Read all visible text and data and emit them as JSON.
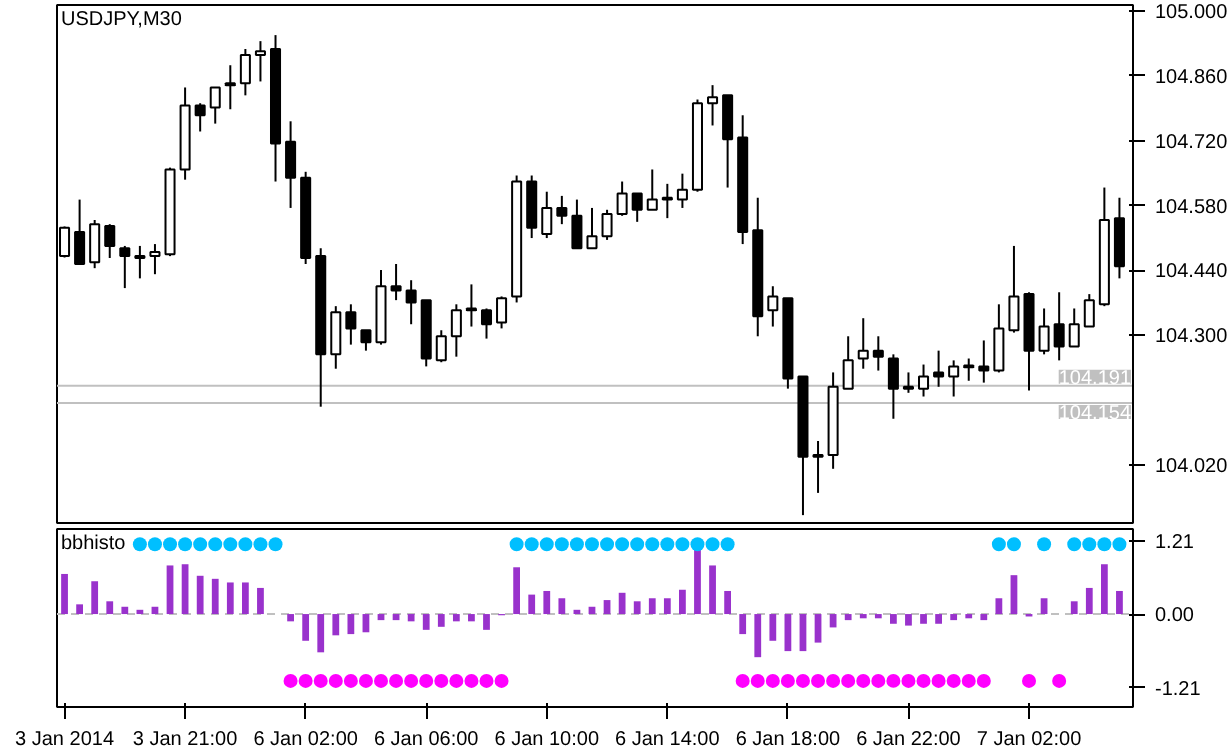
{
  "chart_data": [
    {
      "type": "candlestick",
      "title": "USDJPY,M30",
      "categories": [
        null,
        null,
        null,
        null,
        null,
        null,
        null,
        null,
        null,
        null,
        null,
        null,
        null,
        null,
        null,
        null,
        null,
        null,
        null,
        null,
        null,
        null,
        null,
        null,
        null,
        null,
        null,
        null,
        null,
        null,
        null,
        null,
        null,
        null,
        null,
        null,
        null,
        null,
        null,
        null,
        null,
        null,
        null,
        null,
        null,
        null,
        null,
        null,
        null,
        null,
        null,
        null,
        null,
        null,
        null,
        null,
        null,
        null,
        null,
        null,
        null,
        null,
        null,
        null,
        null,
        null,
        null,
        null,
        null,
        null,
        null
      ],
      "ohlc": [
        [
          104.471,
          104.535,
          104.468,
          104.532
        ],
        [
          104.523,
          104.593,
          104.452,
          104.454
        ],
        [
          104.458,
          104.549,
          104.445,
          104.54
        ],
        [
          104.536,
          104.54,
          104.467,
          104.493
        ],
        [
          104.488,
          104.493,
          104.402,
          104.471
        ],
        [
          104.471,
          104.493,
          104.423,
          104.467
        ],
        [
          104.471,
          104.497,
          104.432,
          104.48
        ],
        [
          104.475,
          104.662,
          104.471,
          104.658
        ],
        [
          104.658,
          104.835,
          104.636,
          104.796
        ],
        [
          104.796,
          104.801,
          104.74,
          104.775
        ],
        [
          104.792,
          104.835,
          104.757,
          104.835
        ],
        [
          104.844,
          104.883,
          104.788,
          104.84
        ],
        [
          104.844,
          104.918,
          104.818,
          104.905
        ],
        [
          104.905,
          104.935,
          104.848,
          104.913
        ],
        [
          104.918,
          104.948,
          104.632,
          104.714
        ],
        [
          104.718,
          104.762,
          104.575,
          104.64
        ],
        [
          104.64,
          104.653,
          104.454,
          104.467
        ],
        [
          104.471,
          104.488,
          104.146,
          104.259
        ],
        [
          104.259,
          104.363,
          104.228,
          104.35
        ],
        [
          104.35,
          104.367,
          104.28,
          104.315
        ],
        [
          104.311,
          104.311,
          104.267,
          104.285
        ],
        [
          104.285,
          104.441,
          104.28,
          104.406
        ],
        [
          104.406,
          104.454,
          104.376,
          104.397
        ],
        [
          104.397,
          104.419,
          104.324,
          104.371
        ],
        [
          104.376,
          104.376,
          104.233,
          104.25
        ],
        [
          104.246,
          104.311,
          104.242,
          104.298
        ],
        [
          104.298,
          104.367,
          104.254,
          104.354
        ],
        [
          104.354,
          104.41,
          104.319,
          104.358
        ],
        [
          104.354,
          104.358,
          104.293,
          104.324
        ],
        [
          104.328,
          104.384,
          104.315,
          104.38
        ],
        [
          104.384,
          104.645,
          104.371,
          104.632
        ],
        [
          104.632,
          104.645,
          104.51,
          104.532
        ],
        [
          104.519,
          104.61,
          104.51,
          104.575
        ],
        [
          104.575,
          104.601,
          104.54,
          104.558
        ],
        [
          104.558,
          104.593,
          104.488,
          104.488
        ],
        [
          104.488,
          104.575,
          104.488,
          104.514
        ],
        [
          104.514,
          104.571,
          104.506,
          104.562
        ],
        [
          104.562,
          104.632,
          104.558,
          104.606
        ],
        [
          104.606,
          104.606,
          104.545,
          104.571
        ],
        [
          104.571,
          104.658,
          104.571,
          104.593
        ],
        [
          104.597,
          104.627,
          104.553,
          104.593
        ],
        [
          104.593,
          104.649,
          104.575,
          104.614
        ],
        [
          104.614,
          104.809,
          104.61,
          104.801
        ],
        [
          104.801,
          104.84,
          104.753,
          104.814
        ],
        [
          104.818,
          104.818,
          104.619,
          104.723
        ],
        [
          104.727,
          104.775,
          104.497,
          104.523
        ],
        [
          104.527,
          104.597,
          104.298,
          104.341
        ],
        [
          104.354,
          104.406,
          104.319,
          104.384
        ],
        [
          104.38,
          104.38,
          104.185,
          104.207
        ],
        [
          104.211,
          104.211,
          103.912,
          104.038
        ],
        [
          104.042,
          104.072,
          103.96,
          104.038
        ],
        [
          104.042,
          104.22,
          104.012,
          104.189
        ],
        [
          104.185,
          104.298,
          104.185,
          104.246
        ],
        [
          104.25,
          104.337,
          104.228,
          104.267
        ],
        [
          104.267,
          104.298,
          104.224,
          104.254
        ],
        [
          104.25,
          104.259,
          104.12,
          104.185
        ],
        [
          104.189,
          104.22,
          104.176,
          104.185
        ],
        [
          104.185,
          104.237,
          104.168,
          104.211
        ],
        [
          104.22,
          104.267,
          104.189,
          104.211
        ],
        [
          104.211,
          104.246,
          104.168,
          104.233
        ],
        [
          104.235,
          104.25,
          104.202,
          104.231
        ],
        [
          104.233,
          104.289,
          104.198,
          104.224
        ],
        [
          104.224,
          104.367,
          104.22,
          104.315
        ],
        [
          104.311,
          104.493,
          104.306,
          104.384
        ],
        [
          104.389,
          104.393,
          104.181,
          104.267
        ],
        [
          104.267,
          104.358,
          104.259,
          104.319
        ],
        [
          104.324,
          104.393,
          104.246,
          104.276
        ],
        [
          104.276,
          104.358,
          104.276,
          104.324
        ],
        [
          104.319,
          104.389,
          104.319,
          104.376
        ],
        [
          104.367,
          104.619,
          104.363,
          104.549
        ],
        [
          104.553,
          104.597,
          104.423,
          104.449
        ]
      ],
      "ylim": [
        103.895,
        105.013
      ],
      "yticks": [
        {
          "value": 104.02,
          "label": "104.020"
        },
        {
          "value": 104.3,
          "label": "104.300"
        },
        {
          "value": 104.44,
          "label": "104.440"
        },
        {
          "value": 104.58,
          "label": "104.580"
        },
        {
          "value": 104.72,
          "label": "104.720"
        },
        {
          "value": 104.86,
          "label": "104.860"
        },
        {
          "value": 105.0,
          "label": "105.000"
        }
      ],
      "tick_labels": "y",
      "ref_lines": [
        {
          "axis": "y",
          "value": 104.191,
          "label": "104.191",
          "color": "#c0c0c0"
        },
        {
          "axis": "y",
          "value": 104.154,
          "label": "104.154",
          "color": "#c0c0c0"
        }
      ]
    },
    {
      "type": "bar",
      "title": "bbhisto",
      "categories": [
        "3 Jan 2014",
        null,
        null,
        null,
        null,
        null,
        null,
        null,
        "3 Jan 21:00",
        null,
        null,
        null,
        null,
        null,
        null,
        null,
        "6 Jan 02:00",
        null,
        null,
        null,
        null,
        null,
        null,
        null,
        "6 Jan 06:00",
        null,
        null,
        null,
        null,
        null,
        null,
        null,
        "6 Jan 10:00",
        null,
        null,
        null,
        null,
        null,
        null,
        null,
        "6 Jan 14:00",
        null,
        null,
        null,
        null,
        null,
        null,
        null,
        "6 Jan 18:00",
        null,
        null,
        null,
        null,
        null,
        null,
        null,
        "6 Jan 22:00",
        null,
        null,
        null,
        null,
        null,
        null,
        null,
        "7 Jan 02:00",
        null,
        null,
        null,
        null,
        null,
        null
      ],
      "series": [
        {
          "type": "bar",
          "color": "#9932cc",
          "values": [
            0.66,
            0.16,
            0.54,
            0.21,
            0.12,
            0.07,
            0.12,
            0.8,
            0.82,
            0.63,
            0.58,
            0.52,
            0.52,
            0.43,
            0,
            -0.12,
            -0.44,
            -0.63,
            -0.35,
            -0.33,
            -0.3,
            -0.1,
            -0.1,
            -0.12,
            -0.26,
            -0.21,
            -0.12,
            -0.12,
            -0.26,
            -0.02,
            0.77,
            0.32,
            0.38,
            0.26,
            0.07,
            0.12,
            0.23,
            0.35,
            0.21,
            0.26,
            0.26,
            0.4,
            1.08,
            0.8,
            0.38,
            -0.33,
            -0.71,
            -0.44,
            -0.61,
            -0.61,
            -0.47,
            -0.22,
            -0.1,
            -0.07,
            -0.07,
            -0.16,
            -0.19,
            -0.16,
            -0.16,
            -0.1,
            -0.07,
            -0.1,
            0.26,
            0.64,
            -0.04,
            0.26,
            0,
            0.21,
            0.43,
            0.82,
            0.38
          ]
        },
        {
          "type": "scatter",
          "color": "#00bfff",
          "values": [
            null,
            null,
            null,
            null,
            null,
            1.15,
            1.15,
            1.15,
            1.15,
            1.15,
            1.15,
            1.15,
            1.15,
            1.15,
            1.15,
            null,
            null,
            null,
            null,
            null,
            null,
            null,
            null,
            null,
            null,
            null,
            null,
            null,
            null,
            null,
            1.15,
            1.15,
            1.15,
            1.15,
            1.15,
            1.15,
            1.15,
            1.15,
            1.15,
            1.15,
            1.15,
            1.15,
            1.15,
            1.15,
            1.15,
            null,
            null,
            null,
            null,
            null,
            null,
            null,
            null,
            null,
            null,
            null,
            null,
            null,
            null,
            null,
            null,
            null,
            1.15,
            1.15,
            null,
            1.15,
            null,
            1.15,
            1.15,
            1.15,
            1.15
          ]
        },
        {
          "type": "scatter",
          "color": "#ff00ff",
          "values": [
            null,
            null,
            null,
            null,
            null,
            null,
            null,
            null,
            null,
            null,
            null,
            null,
            null,
            null,
            null,
            -1.1,
            -1.1,
            -1.1,
            -1.1,
            -1.1,
            -1.1,
            -1.1,
            -1.1,
            -1.1,
            -1.1,
            -1.1,
            -1.1,
            -1.1,
            -1.1,
            -1.1,
            null,
            null,
            null,
            null,
            null,
            null,
            null,
            null,
            null,
            null,
            null,
            null,
            null,
            null,
            null,
            -1.1,
            -1.1,
            -1.1,
            -1.1,
            -1.1,
            -1.1,
            -1.1,
            -1.1,
            -1.1,
            -1.1,
            -1.1,
            -1.1,
            -1.1,
            -1.1,
            -1.1,
            -1.1,
            -1.1,
            null,
            null,
            -1.1,
            null,
            -1.1,
            null,
            null,
            null,
            null
          ]
        }
      ],
      "marker": "circle",
      "ylim": [
        -1.53,
        1.4
      ],
      "yticks": [
        {
          "value": 1.21,
          "label": "1.21"
        },
        {
          "value": 0,
          "label": "0.00"
        },
        {
          "value": -1.21,
          "label": "-1.21"
        }
      ],
      "ref_lines": [
        {
          "axis": "y",
          "value": 0,
          "color": "#c0c0c0",
          "line_style": "dashed"
        }
      ]
    }
  ]
}
